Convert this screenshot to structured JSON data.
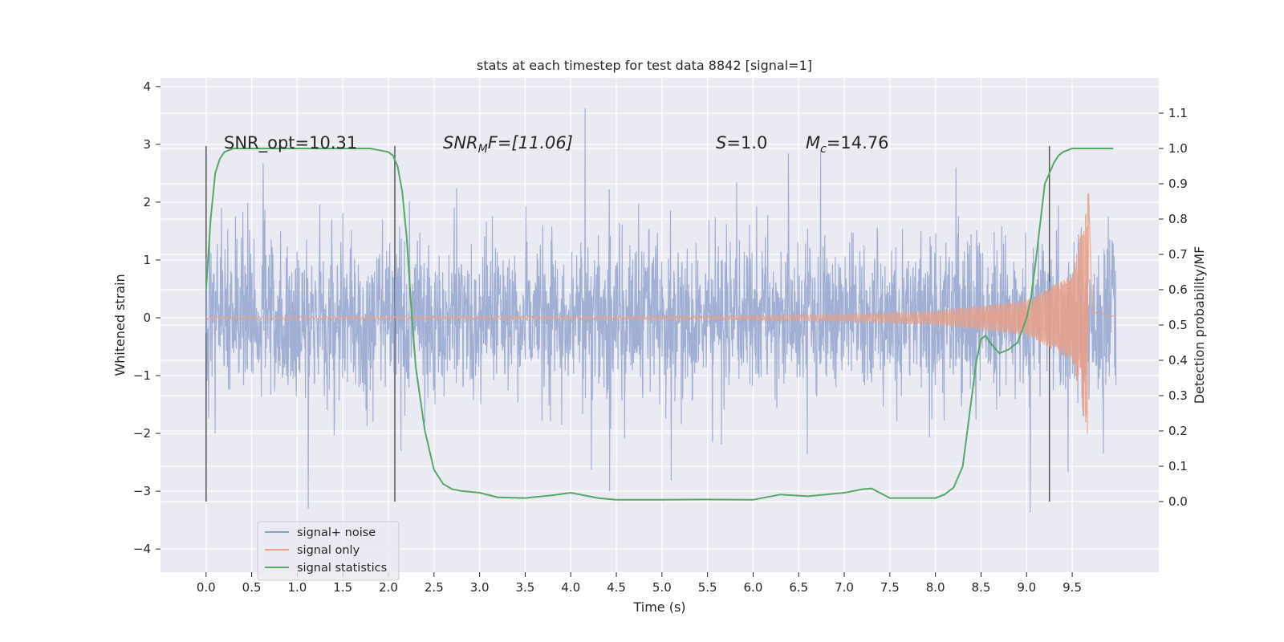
{
  "chart_data": {
    "type": "line",
    "title": "stats at each timestep for test data 8842 [signal=1]",
    "xlabel": "Time (s)",
    "ylabel_left": "Whitened strain",
    "ylabel_right": "Detection probability/MF",
    "xlim": [
      -0.5,
      10.45
    ],
    "ylim_left": [
      -4.4,
      4.15
    ],
    "ylim_right": [
      -0.2,
      1.2
    ],
    "x_ticks": [
      "0.0",
      "0.5",
      "1.0",
      "1.5",
      "2.0",
      "2.5",
      "3.0",
      "3.5",
      "4.0",
      "4.5",
      "5.0",
      "5.5",
      "6.0",
      "6.5",
      "7.0",
      "7.5",
      "8.0",
      "8.5",
      "9.0",
      "9.5"
    ],
    "y_ticks_left": [
      "4",
      "3",
      "2",
      "1",
      "0",
      "−1",
      "−2",
      "−3",
      "−4"
    ],
    "y_ticks_right": [
      "1.1",
      "1.0",
      "0.9",
      "0.8",
      "0.7",
      "0.6",
      "0.5",
      "0.4",
      "0.3",
      "0.2",
      "0.1",
      "0.0"
    ],
    "grid": true,
    "legend_placement": "lower-left",
    "annotations": {
      "snr_opt": "SNR_opt=10.31",
      "snr_mf_main": "SNR",
      "snr_mf_sub": "M",
      "snr_mf_rest": "F=[11.06]",
      "s_var": "S",
      "s_rest": "=1.0",
      "mc_main": "M",
      "mc_sub": "c",
      "mc_rest": "=14.76"
    },
    "vlines": [
      0.0,
      2.07,
      9.25
    ],
    "series": [
      {
        "name": "signal+ noise",
        "axis": "left",
        "color": "#8da0cb",
        "style": "noise",
        "t_range": [
          0.0,
          9.98
        ],
        "sigma": 0.75,
        "envelope": [
          [
            0.0,
            2.2
          ],
          [
            1.0,
            2.3
          ],
          [
            5.0,
            2.3
          ],
          [
            9.0,
            2.4
          ],
          [
            9.98,
            2.1
          ]
        ]
      },
      {
        "name": "signal only",
        "axis": "left",
        "color": "#e8a088",
        "style": "chirp",
        "t_range": [
          0.0,
          9.98
        ],
        "merger_time": 9.68,
        "amplitude_points": [
          [
            0.0,
            0.02
          ],
          [
            5.5,
            0.03
          ],
          [
            7.0,
            0.06
          ],
          [
            8.0,
            0.12
          ],
          [
            9.0,
            0.3
          ],
          [
            9.5,
            0.75
          ],
          [
            9.65,
            1.9
          ],
          [
            9.68,
            2.25
          ],
          [
            9.72,
            0.1
          ],
          [
            9.98,
            0.02
          ]
        ]
      },
      {
        "name": "signal statistics",
        "axis": "right",
        "color": "#55a868",
        "style": "line",
        "x": [
          0.0,
          0.05,
          0.1,
          0.15,
          0.2,
          0.3,
          0.5,
          1.0,
          1.5,
          1.8,
          1.9,
          2.0,
          2.05,
          2.1,
          2.15,
          2.2,
          2.25,
          2.3,
          2.4,
          2.5,
          2.6,
          2.7,
          2.8,
          3.0,
          3.2,
          3.5,
          3.8,
          4.0,
          4.3,
          4.5,
          5.0,
          5.5,
          6.0,
          6.3,
          6.6,
          7.0,
          7.2,
          7.3,
          7.5,
          8.0,
          8.1,
          8.2,
          8.3,
          8.4,
          8.45,
          8.5,
          8.55,
          8.6,
          8.7,
          8.8,
          8.9,
          9.0,
          9.05,
          9.1,
          9.2,
          9.3,
          9.35,
          9.4,
          9.5,
          9.7,
          9.95
        ],
        "y": [
          0.6,
          0.8,
          0.93,
          0.97,
          0.99,
          1.0,
          1.0,
          1.0,
          1.0,
          1.0,
          0.995,
          0.99,
          0.98,
          0.95,
          0.88,
          0.75,
          0.55,
          0.38,
          0.2,
          0.09,
          0.05,
          0.035,
          0.03,
          0.025,
          0.012,
          0.01,
          0.018,
          0.025,
          0.01,
          0.005,
          0.005,
          0.006,
          0.005,
          0.02,
          0.015,
          0.025,
          0.035,
          0.037,
          0.01,
          0.01,
          0.02,
          0.04,
          0.1,
          0.3,
          0.4,
          0.46,
          0.47,
          0.45,
          0.42,
          0.43,
          0.45,
          0.52,
          0.58,
          0.68,
          0.9,
          0.96,
          0.98,
          0.99,
          1.0,
          1.0,
          1.0
        ]
      }
    ]
  }
}
